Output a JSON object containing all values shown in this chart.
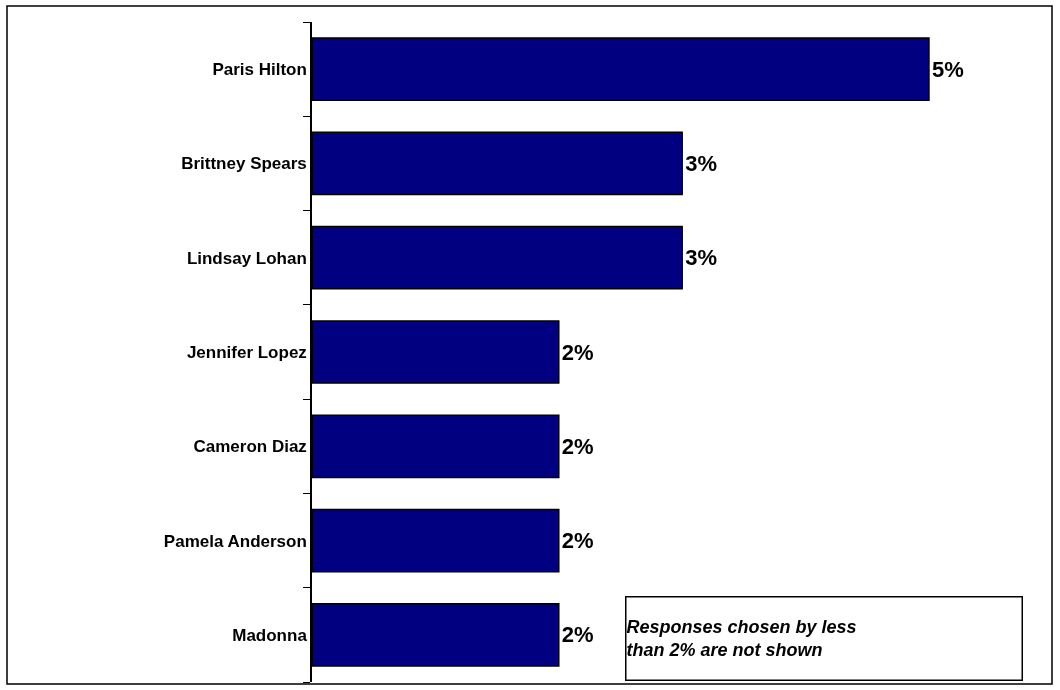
{
  "chart_data": {
    "type": "bar",
    "orientation": "horizontal",
    "categories": [
      "Paris Hilton",
      "Brittney Spears",
      "Lindsay Lohan",
      "Jennifer Lopez",
      "Cameron Diaz",
      "Pamela Anderson",
      "Madonna"
    ],
    "values": [
      5,
      3,
      3,
      2,
      2,
      2,
      2
    ],
    "value_labels": [
      "5%",
      "3%",
      "3%",
      "2%",
      "2%",
      "2%",
      "2%"
    ],
    "color": "#000080",
    "legend": false,
    "annotations": [
      "Responses chosen by less than 2% are not shown"
    ]
  }
}
